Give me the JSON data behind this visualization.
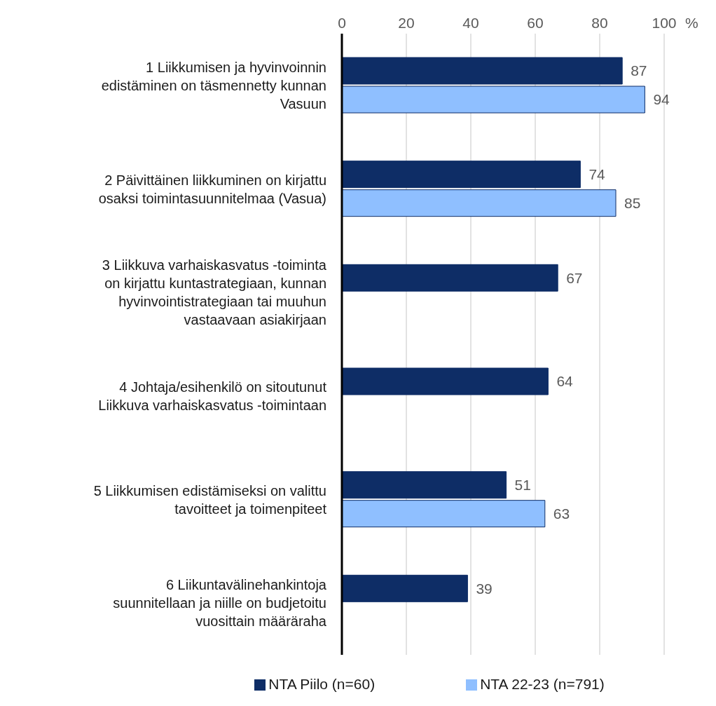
{
  "chart_data": {
    "type": "bar",
    "orientation": "horizontal",
    "xlabel": "%",
    "categories": [
      "1 Liikkumisen ja hyvinvoinnin edistäminen on täsmennetty kunnan Vasuun",
      "2 Päivittäinen liikkuminen on kirjattu osaksi toimintasuunnitelmaa (Vasua)",
      "3 Liikkuva varhaiskasvatus -toiminta on kirjattu kuntastrategiaan, kunnan hyvinvointistrategiaan tai muuhun vastaavaan asiakirjaan",
      "4 Johtaja/esihenkilö on sitoutunut Liikkuva varhaiskasvatus -toimintaan",
      "5 Liikkumisen edistämiseksi on valittu tavoitteet ja toimenpiteet",
      "6 Liikuntavälinehankintoja suunnitellaan ja niille on budjetoitu vuosittain määräraha"
    ],
    "series": [
      {
        "name": "NTA Piilo (n=60)",
        "color": "#0e2d66",
        "values": [
          87,
          74,
          67,
          64,
          51,
          39
        ]
      },
      {
        "name": "NTA 22-23 (n=791)",
        "color": "#8fbfff",
        "values": [
          94,
          85,
          null,
          null,
          63,
          null
        ]
      }
    ],
    "xlim": [
      0,
      100
    ],
    "xticks": [
      0,
      20,
      40,
      60,
      80,
      100
    ],
    "grid": "x",
    "legend": "bottom",
    "data_labels": true
  }
}
